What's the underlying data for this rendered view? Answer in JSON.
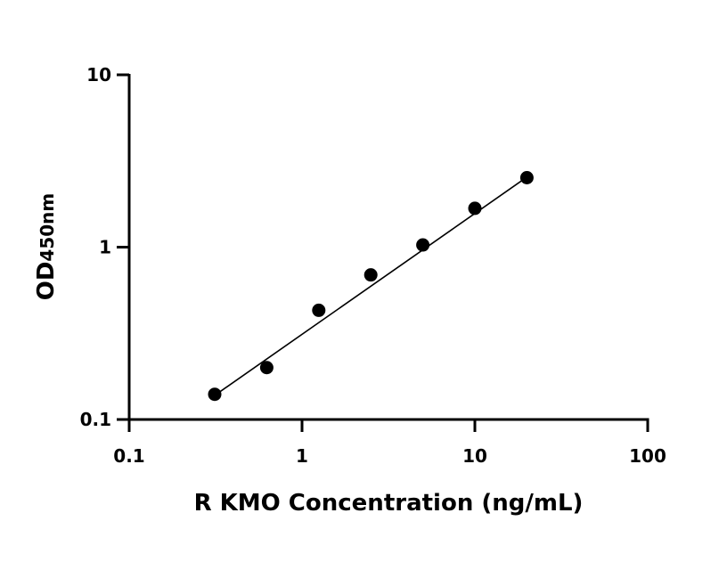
{
  "chart_data": {
    "type": "scatter",
    "xscale": "log",
    "yscale": "log",
    "xlim": [
      0.1,
      100
    ],
    "ylim": [
      0.1,
      10
    ],
    "xticks": [
      0.1,
      1,
      10,
      100
    ],
    "xtick_labels": [
      "0.1",
      "1",
      "10",
      "100"
    ],
    "yticks": [
      0.1,
      1,
      10
    ],
    "ytick_labels": [
      "0.1",
      "1",
      "10"
    ],
    "xlabel": "R KMO Concentration (ng/mL)",
    "ylabel_main": "OD",
    "ylabel_sub": "450nm",
    "grid": false,
    "series": [
      {
        "points": [
          {
            "x": 0.3125,
            "y": 0.14
          },
          {
            "x": 0.625,
            "y": 0.2
          },
          {
            "x": 1.25,
            "y": 0.43
          },
          {
            "x": 2.5,
            "y": 0.69
          },
          {
            "x": 5,
            "y": 1.03
          },
          {
            "x": 10,
            "y": 1.68
          },
          {
            "x": 20,
            "y": 2.53
          }
        ]
      }
    ],
    "fit_line": {
      "x": [
        0.3125,
        20
      ],
      "y": [
        0.138,
        2.55
      ]
    },
    "colors": {
      "marker": "#000000",
      "line": "#000000",
      "axis": "#000000"
    }
  }
}
